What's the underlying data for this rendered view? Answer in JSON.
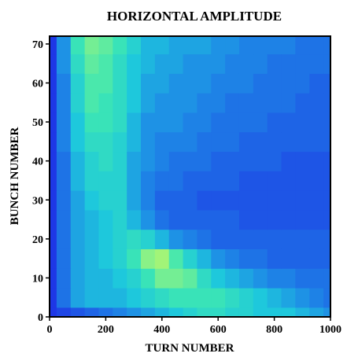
{
  "chart_data": {
    "type": "heatmap",
    "title": "HORIZONTAL AMPLITUDE",
    "xlabel": "TURN NUMBER",
    "ylabel": "BUNCH NUMBER",
    "xlim": [
      0,
      1000
    ],
    "ylim": [
      0,
      72
    ],
    "x_ticks": [
      0,
      200,
      400,
      600,
      800,
      1000
    ],
    "y_ticks": [
      0,
      10,
      20,
      30,
      40,
      50,
      60,
      70
    ],
    "grid": false,
    "legend": "none",
    "colormap": [
      "#1e28e6",
      "#1e5ae6",
      "#1e8ce6",
      "#1ec8dc",
      "#3ce6b4",
      "#82f08c",
      "#d2fa5a"
    ],
    "x": [
      0,
      50,
      100,
      150,
      200,
      250,
      300,
      350,
      400,
      450,
      500,
      550,
      600,
      650,
      700,
      750,
      800,
      850,
      900,
      950,
      1000
    ],
    "y": [
      0,
      5,
      10,
      15,
      20,
      25,
      30,
      35,
      40,
      45,
      50,
      55,
      60,
      65,
      70
    ],
    "z": [
      [
        0.05,
        0.1,
        0.15,
        0.2,
        0.25,
        0.3,
        0.35,
        0.4,
        0.45,
        0.5,
        0.55,
        0.6,
        0.6,
        0.55,
        0.55,
        0.5,
        0.5,
        0.5,
        0.45,
        0.4,
        0.35
      ],
      [
        0.05,
        0.25,
        0.4,
        0.45,
        0.45,
        0.45,
        0.5,
        0.55,
        0.6,
        0.65,
        0.65,
        0.65,
        0.65,
        0.6,
        0.55,
        0.5,
        0.45,
        0.4,
        0.35,
        0.3,
        0.25
      ],
      [
        0.05,
        0.25,
        0.4,
        0.45,
        0.45,
        0.5,
        0.55,
        0.65,
        0.8,
        0.8,
        0.75,
        0.6,
        0.5,
        0.45,
        0.4,
        0.35,
        0.3,
        0.3,
        0.25,
        0.25,
        0.25
      ],
      [
        0.05,
        0.25,
        0.4,
        0.45,
        0.5,
        0.55,
        0.65,
        0.85,
        0.9,
        0.7,
        0.55,
        0.45,
        0.35,
        0.3,
        0.25,
        0.25,
        0.2,
        0.2,
        0.2,
        0.2,
        0.2
      ],
      [
        0.05,
        0.25,
        0.4,
        0.45,
        0.5,
        0.55,
        0.6,
        0.55,
        0.45,
        0.35,
        0.3,
        0.25,
        0.2,
        0.2,
        0.2,
        0.2,
        0.2,
        0.2,
        0.2,
        0.2,
        0.2
      ],
      [
        0.05,
        0.25,
        0.4,
        0.45,
        0.5,
        0.55,
        0.45,
        0.35,
        0.25,
        0.2,
        0.2,
        0.2,
        0.2,
        0.2,
        0.15,
        0.15,
        0.15,
        0.15,
        0.15,
        0.15,
        0.15
      ],
      [
        0.05,
        0.25,
        0.4,
        0.5,
        0.55,
        0.55,
        0.4,
        0.3,
        0.2,
        0.2,
        0.2,
        0.15,
        0.15,
        0.15,
        0.15,
        0.15,
        0.15,
        0.15,
        0.15,
        0.15,
        0.15
      ],
      [
        0.05,
        0.25,
        0.45,
        0.55,
        0.55,
        0.55,
        0.4,
        0.3,
        0.25,
        0.25,
        0.2,
        0.2,
        0.2,
        0.2,
        0.15,
        0.15,
        0.15,
        0.15,
        0.15,
        0.15,
        0.15
      ],
      [
        0.05,
        0.25,
        0.45,
        0.55,
        0.6,
        0.55,
        0.4,
        0.35,
        0.3,
        0.25,
        0.25,
        0.25,
        0.2,
        0.2,
        0.2,
        0.2,
        0.2,
        0.15,
        0.15,
        0.15,
        0.15
      ],
      [
        0.05,
        0.3,
        0.5,
        0.6,
        0.6,
        0.55,
        0.45,
        0.35,
        0.3,
        0.3,
        0.3,
        0.25,
        0.25,
        0.25,
        0.2,
        0.2,
        0.2,
        0.2,
        0.2,
        0.2,
        0.2
      ],
      [
        0.05,
        0.3,
        0.5,
        0.65,
        0.65,
        0.6,
        0.45,
        0.35,
        0.35,
        0.35,
        0.3,
        0.3,
        0.25,
        0.25,
        0.25,
        0.25,
        0.2,
        0.2,
        0.2,
        0.2,
        0.2
      ],
      [
        0.05,
        0.3,
        0.55,
        0.7,
        0.65,
        0.6,
        0.5,
        0.4,
        0.35,
        0.35,
        0.35,
        0.3,
        0.3,
        0.25,
        0.25,
        0.25,
        0.25,
        0.25,
        0.2,
        0.2,
        0.2
      ],
      [
        0.05,
        0.3,
        0.55,
        0.7,
        0.7,
        0.6,
        0.5,
        0.4,
        0.4,
        0.35,
        0.35,
        0.35,
        0.3,
        0.3,
        0.3,
        0.25,
        0.25,
        0.25,
        0.25,
        0.2,
        0.2
      ],
      [
        0.05,
        0.35,
        0.6,
        0.75,
        0.7,
        0.6,
        0.5,
        0.45,
        0.4,
        0.4,
        0.35,
        0.35,
        0.35,
        0.3,
        0.3,
        0.3,
        0.25,
        0.25,
        0.25,
        0.25,
        0.25
      ],
      [
        0.05,
        0.35,
        0.65,
        0.8,
        0.75,
        0.65,
        0.55,
        0.45,
        0.45,
        0.4,
        0.4,
        0.4,
        0.35,
        0.35,
        0.3,
        0.3,
        0.3,
        0.3,
        0.25,
        0.25,
        0.25
      ]
    ]
  }
}
